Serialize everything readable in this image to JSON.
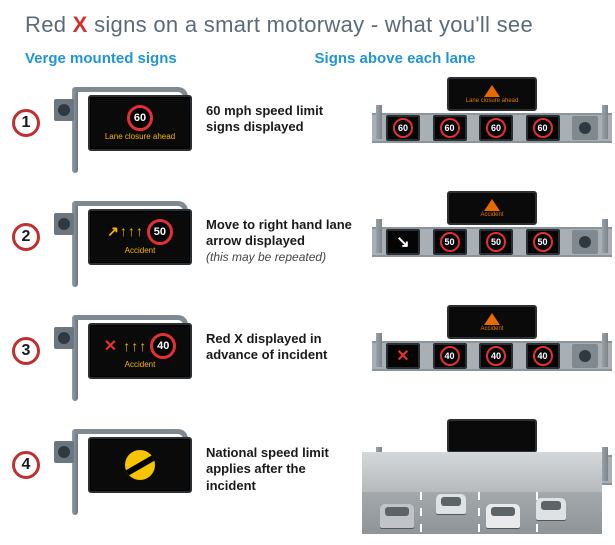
{
  "title": {
    "prefix": "Red ",
    "x": "X",
    "suffix": " signs on a smart motorway - what you'll see",
    "color": "#5b6a78",
    "x_color": "#d32f2f",
    "fontsize": 22
  },
  "subheads": {
    "left": "Verge mounted signs",
    "right": "Signs above each lane",
    "color": "#2196d6",
    "fontsize": 15
  },
  "number_style": {
    "ring_color": "#c03030",
    "text_color": "#1a1a1a"
  },
  "rows": [
    {
      "num": "1",
      "desc_main": "60 mph speed limit signs displayed",
      "desc_note": "",
      "verge": {
        "speed": "60",
        "text": "Lane closure ahead",
        "arrows": 0,
        "red_x": false,
        "nsl": false
      },
      "gantry": {
        "top_panel": {
          "show_triangle": true,
          "text": "Lane closure ahead",
          "blank": false
        },
        "cells": [
          {
            "type": "speed",
            "value": "60"
          },
          {
            "type": "speed",
            "value": "60"
          },
          {
            "type": "speed",
            "value": "60"
          },
          {
            "type": "speed",
            "value": "60"
          }
        ]
      }
    },
    {
      "num": "2",
      "desc_main": "Move to right hand lane arrow displayed",
      "desc_note": "(this may be repeated)",
      "verge": {
        "speed": "50",
        "text": "Accident",
        "arrows": 3,
        "arrow_lead": "↗",
        "red_x": false,
        "nsl": false
      },
      "gantry": {
        "top_panel": {
          "show_triangle": true,
          "text": "Accident",
          "blank": false
        },
        "cells": [
          {
            "type": "arrow",
            "value": "↘"
          },
          {
            "type": "speed",
            "value": "50"
          },
          {
            "type": "speed",
            "value": "50"
          },
          {
            "type": "speed",
            "value": "50"
          }
        ]
      }
    },
    {
      "num": "3",
      "desc_main": "Red X displayed in advance of incident",
      "desc_note": "",
      "verge": {
        "speed": "40",
        "text": "Accident",
        "arrows": 3,
        "red_x": true,
        "nsl": false
      },
      "gantry": {
        "top_panel": {
          "show_triangle": true,
          "text": "Accident",
          "blank": false
        },
        "cells": [
          {
            "type": "x",
            "value": "✕"
          },
          {
            "type": "speed",
            "value": "40"
          },
          {
            "type": "speed",
            "value": "40"
          },
          {
            "type": "speed",
            "value": "40"
          }
        ]
      }
    },
    {
      "num": "4",
      "desc_main": "National speed limit applies after the incident",
      "desc_note": "",
      "verge": {
        "speed": "",
        "text": "",
        "arrows": 0,
        "red_x": false,
        "nsl": true
      },
      "gantry": {
        "top_panel": {
          "show_triangle": false,
          "text": "",
          "blank": true
        },
        "cells": [
          {
            "type": "nsl"
          },
          {
            "type": "nsl"
          },
          {
            "type": "nsl"
          },
          {
            "type": "nsl"
          }
        ]
      }
    }
  ],
  "colors": {
    "panel_bg": "#0a0a0a",
    "panel_border": "#2a2f33",
    "speed_ring": "#e53030",
    "speed_text": "#ffffff",
    "amber_text": "#f6b400",
    "red_x": "#e53030",
    "gantry_metal": "#9aa2a8",
    "nsl_yellow": "#f6c400",
    "background": "#ffffff"
  }
}
